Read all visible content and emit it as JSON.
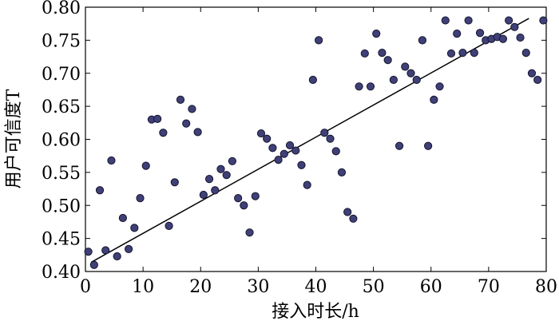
{
  "chart_data": {
    "type": "scatter",
    "xlabel": "接入时长/h",
    "ylabel": "用户可信度T",
    "xlim": [
      0,
      80
    ],
    "ylim": [
      0.4,
      0.8
    ],
    "xticks": [
      0,
      10,
      20,
      30,
      40,
      50,
      60,
      70,
      80
    ],
    "yticks": [
      "0.40",
      "0.45",
      "0.50",
      "0.55",
      "0.60",
      "0.65",
      "0.70",
      "0.75",
      "0.80"
    ],
    "grid": false,
    "points": [
      [
        0.5,
        0.43
      ],
      [
        1.5,
        0.41
      ],
      [
        2.5,
        0.523
      ],
      [
        3.5,
        0.432
      ],
      [
        4.5,
        0.568
      ],
      [
        5.5,
        0.423
      ],
      [
        6.5,
        0.481
      ],
      [
        7.5,
        0.434
      ],
      [
        8.5,
        0.466
      ],
      [
        9.5,
        0.511
      ],
      [
        10.5,
        0.56
      ],
      [
        11.5,
        0.63
      ],
      [
        12.5,
        0.631
      ],
      [
        13.5,
        0.61
      ],
      [
        14.5,
        0.469
      ],
      [
        15.5,
        0.535
      ],
      [
        16.5,
        0.66
      ],
      [
        17.5,
        0.624
      ],
      [
        18.5,
        0.646
      ],
      [
        19.5,
        0.611
      ],
      [
        20.5,
        0.516
      ],
      [
        21.5,
        0.54
      ],
      [
        22.5,
        0.523
      ],
      [
        23.5,
        0.555
      ],
      [
        24.5,
        0.546
      ],
      [
        25.5,
        0.567
      ],
      [
        26.5,
        0.511
      ],
      [
        27.5,
        0.5
      ],
      [
        28.5,
        0.459
      ],
      [
        29.5,
        0.514
      ],
      [
        30.5,
        0.609
      ],
      [
        31.5,
        0.601
      ],
      [
        32.5,
        0.587
      ],
      [
        33.5,
        0.569
      ],
      [
        34.5,
        0.578
      ],
      [
        35.5,
        0.591
      ],
      [
        36.5,
        0.583
      ],
      [
        37.5,
        0.561
      ],
      [
        38.5,
        0.531
      ],
      [
        39.5,
        0.69
      ],
      [
        40.5,
        0.75
      ],
      [
        41.5,
        0.61
      ],
      [
        42.5,
        0.601
      ],
      [
        43.5,
        0.582
      ],
      [
        44.5,
        0.55
      ],
      [
        45.5,
        0.49
      ],
      [
        46.5,
        0.48
      ],
      [
        47.5,
        0.68
      ],
      [
        48.5,
        0.73
      ],
      [
        49.5,
        0.68
      ],
      [
        50.5,
        0.76
      ],
      [
        51.5,
        0.731
      ],
      [
        52.5,
        0.72
      ],
      [
        53.5,
        0.69
      ],
      [
        54.5,
        0.59
      ],
      [
        55.5,
        0.71
      ],
      [
        56.5,
        0.7
      ],
      [
        57.5,
        0.69
      ],
      [
        58.5,
        0.75
      ],
      [
        59.5,
        0.59
      ],
      [
        60.5,
        0.66
      ],
      [
        61.5,
        0.68
      ],
      [
        62.5,
        0.78
      ],
      [
        63.5,
        0.73
      ],
      [
        64.5,
        0.76
      ],
      [
        65.5,
        0.731
      ],
      [
        66.5,
        0.78
      ],
      [
        67.5,
        0.731
      ],
      [
        68.5,
        0.761
      ],
      [
        69.5,
        0.75
      ],
      [
        70.5,
        0.752
      ],
      [
        71.5,
        0.755
      ],
      [
        72.5,
        0.752
      ],
      [
        73.5,
        0.78
      ],
      [
        74.5,
        0.77
      ],
      [
        75.5,
        0.754
      ],
      [
        76.5,
        0.731
      ],
      [
        77.5,
        0.7
      ],
      [
        78.5,
        0.69
      ],
      [
        79.5,
        0.78
      ]
    ],
    "trendline": {
      "x": [
        1,
        77
      ],
      "y": [
        0.414,
        0.783
      ]
    }
  }
}
